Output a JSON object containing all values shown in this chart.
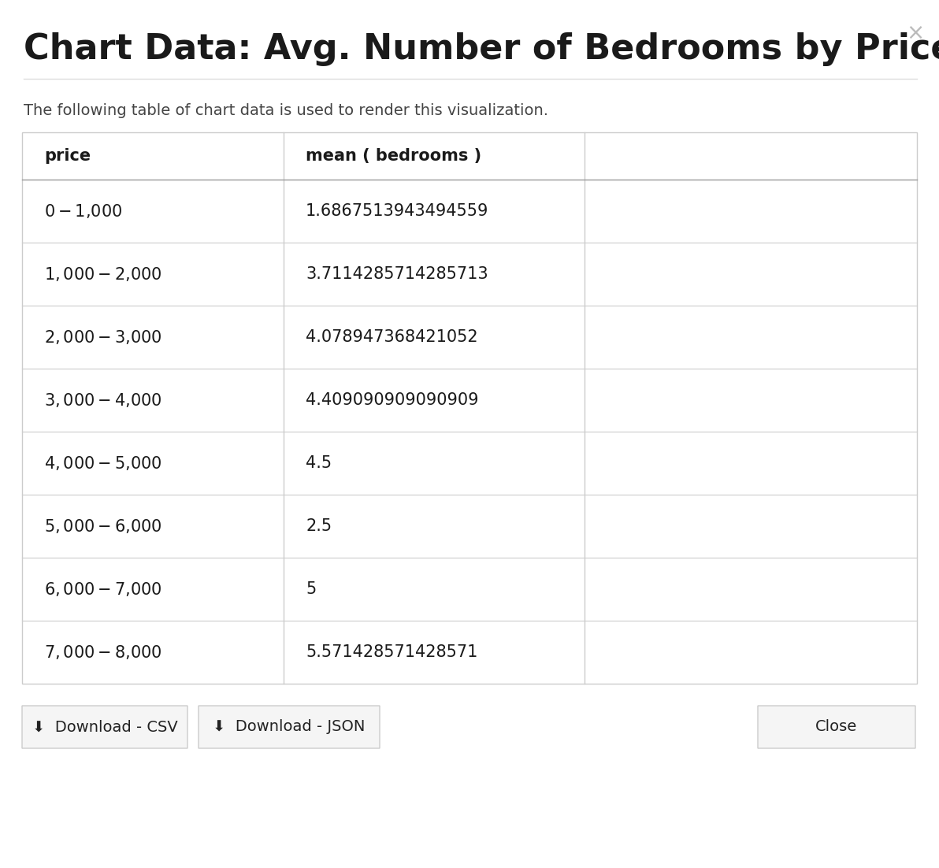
{
  "title": "Chart Data: Avg. Number of Bedrooms by Price",
  "subtitle": "The following table of chart data is used to render this visualization.",
  "col1_header": "price",
  "col2_header": "mean ( bedrooms )",
  "rows": [
    [
      "$0 - $1,000",
      "1.6867513943494559"
    ],
    [
      "$1,000 - $2,000",
      "3.7114285714285713"
    ],
    [
      "$2,000 - $3,000",
      "4.078947368421052"
    ],
    [
      "$3,000 - $4,000",
      "4.409090909090909"
    ],
    [
      "$4,000 - $5,000",
      "4.5"
    ],
    [
      "$5,000 - $6,000",
      "2.5"
    ],
    [
      "$6,000 - $7,000",
      "5"
    ],
    [
      "$7,000 - $8,000",
      "5.571428571428571"
    ]
  ],
  "bg_color": "#ffffff",
  "table_border_color": "#cccccc",
  "header_divider_color": "#999999",
  "title_fontsize": 32,
  "subtitle_fontsize": 14,
  "header_fontsize": 15,
  "cell_fontsize": 15,
  "button_color": "#f5f5f5",
  "button_border_color": "#cccccc",
  "button_text_color": "#222222",
  "close_x_color": "#bbbbbb",
  "text_color": "#1a1a1a",
  "fig_width": 11.92,
  "fig_height": 11.02,
  "dpi": 100
}
